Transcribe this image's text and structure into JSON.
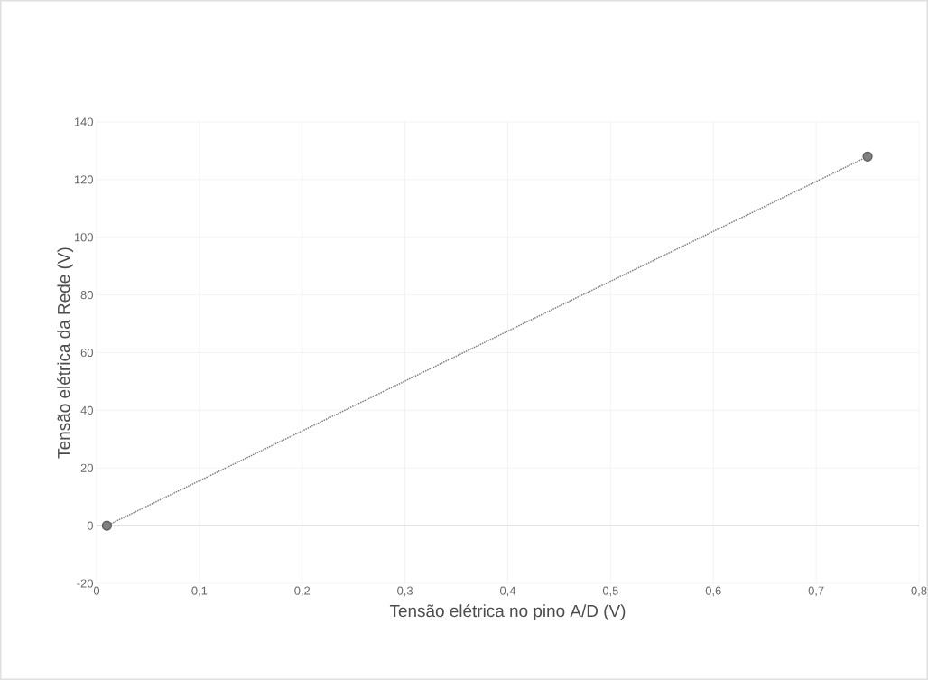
{
  "chart_data": {
    "type": "line",
    "xlabel": "Tensão elétrica no pino A/D (V)",
    "ylabel": "Tensão elétrica da Rede (V)",
    "x": [
      0.01,
      0.75
    ],
    "series": [
      {
        "color": "#7f7f7f",
        "values": [
          0,
          128
        ]
      }
    ],
    "marker": "circle",
    "line_style": "dotted",
    "grid": true,
    "legend": false,
    "xlim": [
      0,
      0.8
    ],
    "xticks": [
      0,
      {
        "value": 0.1,
        "label": "0,1"
      },
      {
        "value": 0.2,
        "label": "0,2"
      },
      {
        "value": 0.3,
        "label": "0,3"
      },
      {
        "value": 0.4,
        "label": "0,4"
      },
      {
        "value": 0.5,
        "label": "0,5"
      },
      {
        "value": 0.6,
        "label": "0,6"
      },
      {
        "value": 0.7,
        "label": "0,7"
      },
      {
        "value": 0.8,
        "label": "0,8"
      }
    ],
    "ylim": [
      -20,
      140
    ],
    "yticks": [
      -20,
      0,
      20,
      40,
      60,
      80,
      100,
      120,
      140
    ]
  }
}
